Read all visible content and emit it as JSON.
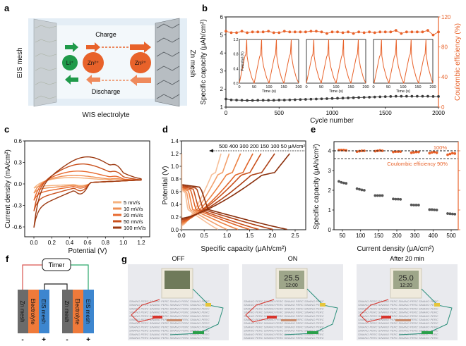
{
  "panel_labels": [
    "a",
    "b",
    "c",
    "d",
    "e",
    "f",
    "g"
  ],
  "diagram_a": {
    "left_electrode": "EIS mesh",
    "right_electrode": "Zn mesh",
    "charge": "Charge",
    "discharge": "Discharge",
    "electrolyte": "WIS electrolyte",
    "ion_li": "Li⁺",
    "ion_zn": "Zn²⁺",
    "colors": {
      "li": "#1f9a4a",
      "zn": "#e8622a"
    }
  },
  "diagram_f": {
    "timer": "Timer",
    "layers": [
      "Zn mesh",
      "Electrolyte",
      "EIS mesh"
    ],
    "minus": "-",
    "plus": "+",
    "colors": {
      "zn": "#6b6b6b",
      "electrolyte": "#ef7a3a",
      "eis": "#3d86cf"
    }
  },
  "photos_g": [
    {
      "title": "OFF",
      "lcd_top": "",
      "lcd_bottom": ""
    },
    {
      "title": "ON",
      "lcd_top": "25.5",
      "lcd_bottom": "12:00"
    },
    {
      "title": "After 20 min",
      "lcd_top": "25.0",
      "lcd_bottom": "12:20"
    }
  ],
  "chart_data": [
    {
      "panel": "b",
      "type": "scatter",
      "xlabel": "Cycle number",
      "ylabel": "Specific capacity (μAh/cm²)",
      "y2label": "Coulombic efficiency (%)",
      "xlim": [
        0,
        2000
      ],
      "ylim": [
        1,
        6
      ],
      "y2lim": [
        0,
        120
      ],
      "xticks": [
        0,
        500,
        1000,
        1500,
        2000
      ],
      "yticks": [
        1,
        2,
        3,
        4,
        5,
        6
      ],
      "y2ticks": [
        0,
        40,
        80,
        120
      ],
      "x": [
        0,
        50,
        100,
        150,
        200,
        250,
        300,
        350,
        400,
        450,
        500,
        550,
        600,
        650,
        700,
        750,
        800,
        850,
        900,
        950,
        1000,
        1050,
        1100,
        1150,
        1200,
        1250,
        1300,
        1350,
        1400,
        1450,
        1500,
        1550,
        1600,
        1650,
        1700,
        1750,
        1800,
        1850,
        1900,
        1950,
        2000
      ],
      "series": [
        {
          "axis": "left",
          "color": "#3a3a3a",
          "values": [
            1.45,
            1.4,
            1.39,
            1.38,
            1.37,
            1.37,
            1.38,
            1.38,
            1.38,
            1.38,
            1.39,
            1.39,
            1.4,
            1.41,
            1.42,
            1.43,
            1.44,
            1.45,
            1.46,
            1.47,
            1.48,
            1.49,
            1.5,
            1.51,
            1.52,
            1.53,
            1.54,
            1.55,
            1.56,
            1.57,
            1.58,
            1.59,
            1.6,
            1.6,
            1.6,
            1.6,
            1.6,
            1.6,
            1.6,
            1.59,
            1.59
          ]
        },
        {
          "axis": "right",
          "color": "#e8622a",
          "values": [
            101,
            99,
            99,
            101,
            99,
            100,
            100,
            100,
            101,
            99,
            99,
            101,
            100,
            100,
            100,
            100,
            101,
            101,
            100,
            98,
            100,
            100,
            99,
            100,
            98,
            100,
            99,
            100,
            99,
            100,
            100,
            100,
            102,
            98,
            100,
            100,
            100,
            100,
            102,
            96,
            100
          ]
        }
      ],
      "insets": {
        "xlabel": "Time (s)",
        "ylabel": "Potential (V)",
        "xlim": [
          0,
          200
        ],
        "ylim": [
          0,
          1.2
        ],
        "xticks": [
          0,
          50,
          100,
          150,
          200
        ],
        "yticks": [
          "0.0",
          "0.4",
          "0.8",
          "1.2"
        ],
        "count": 3
      }
    },
    {
      "panel": "c",
      "type": "line",
      "xlabel": "Potential (V)",
      "ylabel": "Current density (mA/cm²)",
      "xlim": [
        -0.1,
        1.25
      ],
      "ylim": [
        -0.75,
        0.6
      ],
      "xticks": [
        "0.0",
        "0.2",
        "0.4",
        "0.6",
        "0.8",
        "1.0",
        "1.2"
      ],
      "yticks": [
        "-0.6",
        "-0.3",
        "0.0",
        "0.3",
        "0.6"
      ],
      "legend_position": "bottom-right",
      "series": [
        {
          "name": "5 mV/s",
          "anodic_peak": 0.07,
          "cathodic_min": -0.06,
          "color": "#f5b27e"
        },
        {
          "name": "10 mV/s",
          "anodic_peak": 0.1,
          "cathodic_min": -0.13,
          "color": "#ef9055"
        },
        {
          "name": "20 mV/s",
          "anodic_peak": 0.16,
          "cathodic_min": -0.23,
          "color": "#e8692e"
        },
        {
          "name": "50 mV/s",
          "anodic_peak": 0.26,
          "cathodic_min": -0.38,
          "color": "#c9501c"
        },
        {
          "name": "100 mV/s",
          "anodic_peak": 0.36,
          "cathodic_min": -0.61,
          "color": "#9c3a12"
        }
      ]
    },
    {
      "panel": "d",
      "type": "line",
      "xlabel": "Specific capacity (μAh/cm²)",
      "ylabel": "Potential (V)",
      "xlim": [
        0,
        2.75
      ],
      "ylim": [
        0,
        1.4
      ],
      "xticks": [
        "0.0",
        "0.5",
        "1.0",
        "1.5",
        "2.0",
        "2.5"
      ],
      "yticks": [
        "0.0",
        "0.2",
        "0.4",
        "0.6",
        "0.8",
        "1.0",
        "1.2",
        "1.4"
      ],
      "annotation": "500 400 300 200 150 100 50 μA/cm²",
      "series": [
        {
          "current": 500,
          "charge_capacity": 0.87,
          "discharge_capacity": 0.85,
          "color": "#f7c09a"
        },
        {
          "current": 400,
          "charge_capacity": 1.05,
          "discharge_capacity": 1.05,
          "color": "#f3a06c"
        },
        {
          "current": 300,
          "charge_capacity": 1.3,
          "discharge_capacity": 1.3,
          "color": "#ec8244"
        },
        {
          "current": 200,
          "charge_capacity": 1.57,
          "discharge_capacity": 1.55,
          "color": "#e0652a"
        },
        {
          "current": 150,
          "charge_capacity": 1.75,
          "discharge_capacity": 1.75,
          "color": "#c9501c"
        },
        {
          "current": 100,
          "charge_capacity": 2.05,
          "discharge_capacity": 2.05,
          "color": "#ad4015"
        },
        {
          "current": 50,
          "charge_capacity": 2.38,
          "discharge_capacity": 2.35,
          "color": "#8a2f0c"
        }
      ]
    },
    {
      "panel": "e",
      "type": "scatter",
      "xlabel": "Current density (μA/cm²)",
      "ylabel": "Specific capacity (μAh/cm²)",
      "ylim": [
        0,
        4.45
      ],
      "yticks": [
        0,
        1,
        2,
        3,
        4
      ],
      "categories": [
        "50",
        "100",
        "150",
        "200",
        "300",
        "400",
        "500"
      ],
      "capacity": [
        [
          2.45,
          2.4,
          2.37,
          2.35
        ],
        [
          2.08,
          2.05,
          2.02,
          2.0
        ],
        [
          1.73,
          1.73,
          1.73,
          1.73
        ],
        [
          1.56,
          1.55,
          1.55,
          1.54
        ],
        [
          1.26,
          1.25,
          1.25,
          1.25
        ],
        [
          1.02,
          1.02,
          1.01,
          1.0
        ],
        [
          0.82,
          0.81,
          0.8,
          0.79
        ]
      ],
      "coulombic_efficiency": [
        [
          101,
          101,
          101,
          100.5
        ],
        [
          99,
          99.5,
          100,
          100
        ],
        [
          99.5,
          100,
          100.5,
          100
        ],
        [
          98.5,
          99,
          99,
          99
        ],
        [
          97.5,
          98,
          98.5,
          98.5
        ],
        [
          97,
          98,
          98.5,
          97.5
        ],
        [
          95,
          96,
          97,
          96.5
        ]
      ],
      "reference_lines": [
        {
          "label": "100%",
          "value": 100
        },
        {
          "label": "Coulombic efficiency 90%",
          "value": 90
        }
      ],
      "colors": {
        "capacity": "#555555",
        "ce": "#e8622a"
      }
    }
  ]
}
